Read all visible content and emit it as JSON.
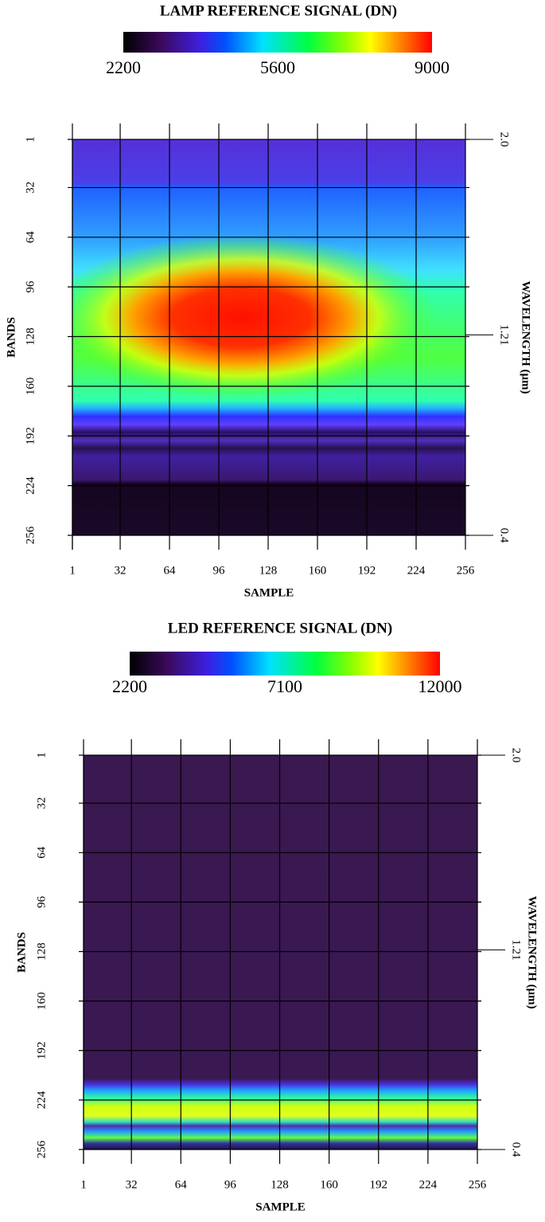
{
  "chart_data": [
    {
      "type": "heatmap",
      "title": "LAMP REFERENCE SIGNAL (DN)",
      "colorbar_lim": [
        2200,
        9000
      ],
      "colorbar_ticks": [
        2200,
        5600,
        9000
      ],
      "xlabel": "SAMPLE",
      "ylabel": "BANDS",
      "y2label": "WAVELENGTH (μm)",
      "xlim": [
        1,
        256
      ],
      "xticks": [
        1,
        32,
        64,
        96,
        128,
        160,
        192,
        224,
        256
      ],
      "ylim": [
        1,
        256
      ],
      "yticks": [
        1,
        32,
        64,
        96,
        128,
        160,
        192,
        224,
        256
      ],
      "y2lim": [
        2,
        0.4
      ],
      "y2ticks": [
        {
          "value": 2,
          "label": "2.0"
        },
        1.21,
        0.4
      ],
      "grid": true
    },
    {
      "type": "heatmap",
      "title": "LED REFERENCE SIGNAL (DN)",
      "colorbar_lim": [
        2200,
        12000
      ],
      "colorbar_ticks": [
        2200,
        7100,
        12000
      ],
      "xlabel": "SAMPLE",
      "ylabel": "BANDS",
      "y2label": "WAVELENGTH (μm)",
      "xlim": [
        1,
        256
      ],
      "xticks": [
        1,
        32,
        64,
        96,
        128,
        160,
        192,
        224,
        256
      ],
      "ylim": [
        1,
        256
      ],
      "yticks": [
        1,
        32,
        64,
        96,
        128,
        160,
        192,
        224,
        256
      ],
      "y2lim": [
        2,
        0.4
      ],
      "y2ticks": [
        {
          "value": 2,
          "label": "2.0"
        },
        1.21,
        0.4
      ],
      "grid": true
    }
  ]
}
